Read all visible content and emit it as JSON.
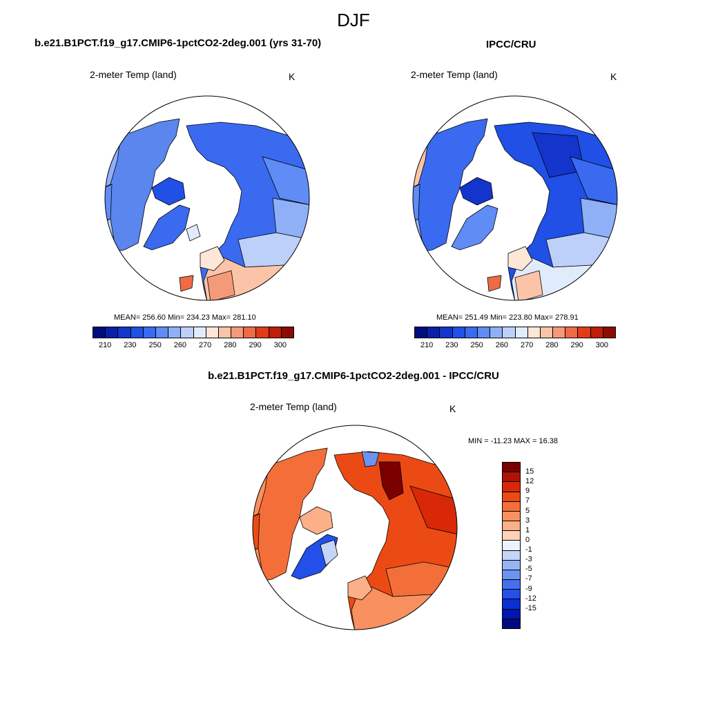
{
  "season": "DJF",
  "panels": [
    {
      "title": "b.e21.B1PCT.f19_g17.CMIP6-1pctCO2-2deg.001 (yrs 31-70)",
      "variable": "2-meter Temp (land)",
      "units": "K",
      "stats": "MEAN= 256.60  Min= 234.23  Max= 281.10",
      "mean": 256.6,
      "min": 234.23,
      "max": 281.1
    },
    {
      "title": "IPCC/CRU",
      "variable": "2-meter Temp (land)",
      "units": "K",
      "stats": "MEAN= 251.49  Min= 223.80  Max= 278.91",
      "mean": 251.49,
      "min": 223.8,
      "max": 278.91
    }
  ],
  "diff_panel": {
    "title": "b.e21.B1PCT.f19_g17.CMIP6-1pctCO2-2deg.001 - IPCC/CRU",
    "variable": "2-meter Temp (land)",
    "units": "K",
    "stats": "MIN = -11.23 MAX =  16.38",
    "min": -11.23,
    "max": 16.38
  },
  "abs_colorbar": {
    "colors": [
      "#000c7e",
      "#0a1fa8",
      "#1335cc",
      "#2050e6",
      "#3a6af0",
      "#5f8cf5",
      "#8fb0f7",
      "#bcd0fa",
      "#e0ecfb",
      "#fde7d6",
      "#fbc4a8",
      "#f59a78",
      "#ee6b45",
      "#e03c1a",
      "#c01c08",
      "#8a0d04"
    ],
    "tick_labels": [
      "210",
      "230",
      "250",
      "260",
      "270",
      "280",
      "290",
      "300"
    ]
  },
  "diff_colorbar": {
    "colors": [
      "#7b0000",
      "#b01205",
      "#d82808",
      "#ec4a15",
      "#f46e3a",
      "#f89060",
      "#fbb088",
      "#fdd3b8",
      "#edf3fd",
      "#c3d6fa",
      "#97b5f6",
      "#6c93f2",
      "#4470ed",
      "#2250e8",
      "#0b30d2",
      "#0018b0",
      "#000a80"
    ],
    "tick_labels": [
      "15",
      "12",
      "9",
      "7",
      "5",
      "3",
      "1",
      "0",
      "-1",
      "-3",
      "-5",
      "-7",
      "-9",
      "-12",
      "-15"
    ]
  },
  "chart_data": [
    {
      "type": "heatmap",
      "title": "b.e21.B1PCT.f19_g17.CMIP6-1pctCO2-2deg.001 (yrs 31-70)",
      "variable": "2-meter Temp (land)",
      "units": "K",
      "legend_ticks": [
        210,
        230,
        250,
        260,
        270,
        280,
        290,
        300
      ],
      "stats": {
        "mean": 256.6,
        "min": 234.23,
        "max": 281.1
      }
    },
    {
      "type": "heatmap",
      "title": "IPCC/CRU",
      "variable": "2-meter Temp (land)",
      "units": "K",
      "legend_ticks": [
        210,
        230,
        250,
        260,
        270,
        280,
        290,
        300
      ],
      "stats": {
        "mean": 251.49,
        "min": 223.8,
        "max": 278.91
      }
    },
    {
      "type": "heatmap",
      "title": "b.e21.B1PCT.f19_g17.CMIP6-1pctCO2-2deg.001 - IPCC/CRU",
      "variable": "2-meter Temp (land)",
      "units": "K",
      "legend_ticks": [
        15,
        12,
        9,
        7,
        5,
        3,
        1,
        0,
        -1,
        -3,
        -5,
        -7,
        -9,
        -12,
        -15
      ],
      "stats": {
        "min": -11.23,
        "max": 16.38
      }
    }
  ]
}
